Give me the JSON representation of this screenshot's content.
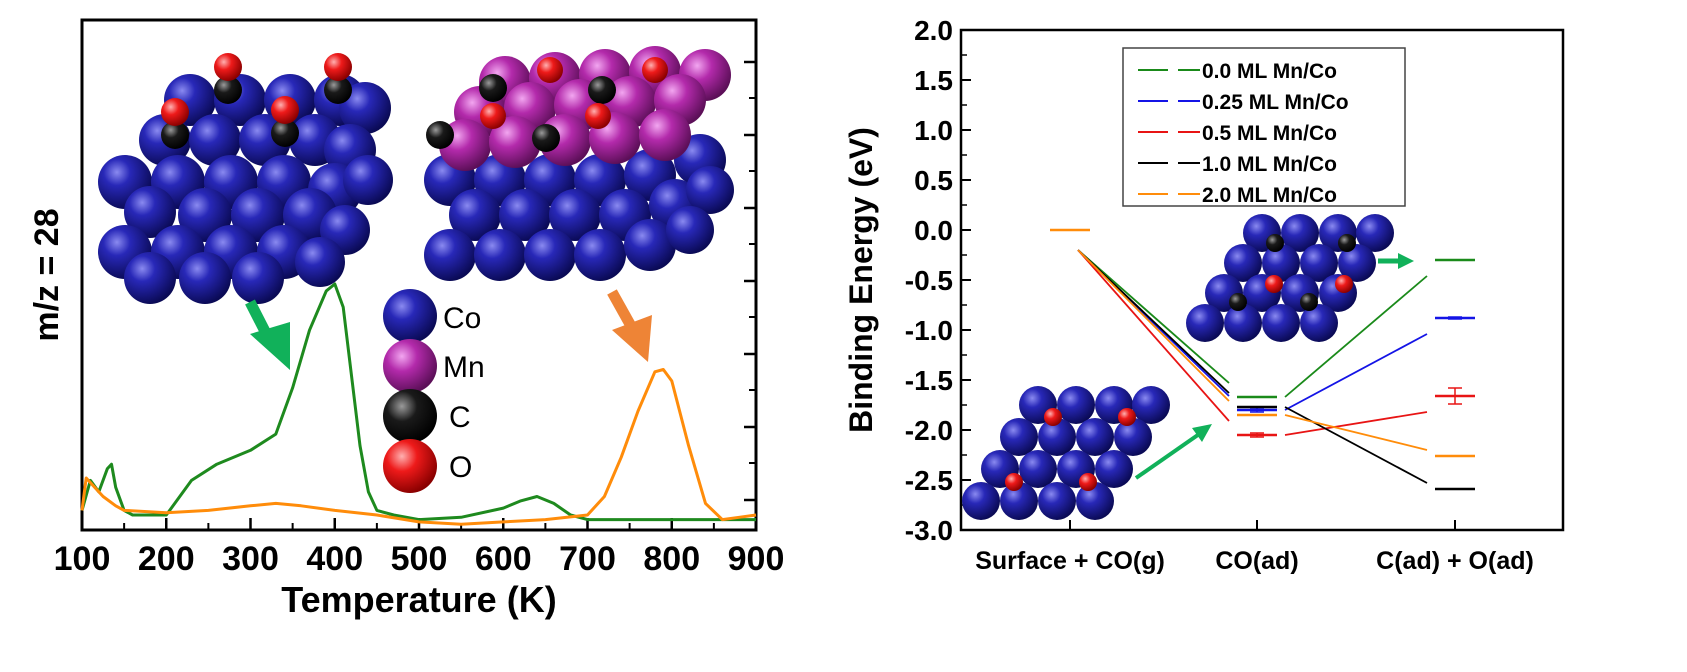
{
  "chart_data": [
    {
      "type": "line",
      "xlabel": "Temperature (K)",
      "ylabel": "m/z = 28",
      "xlim": [
        100,
        900
      ],
      "xticks": [
        "100",
        "200",
        "300",
        "400",
        "500",
        "600",
        "700",
        "800",
        "900"
      ],
      "grid": false,
      "legend": {
        "placement": "center",
        "entries": [
          {
            "label": "Co",
            "color": "#1f1f8f"
          },
          {
            "label": "Mn",
            "color": "#a0209a"
          },
          {
            "label": "C",
            "color": "#000000"
          },
          {
            "label": "O",
            "color": "#e8151b"
          }
        ]
      },
      "series": [
        {
          "color": "#1e8a1e",
          "x": [
            100,
            110,
            120,
            130,
            135,
            140,
            150,
            160,
            200,
            230,
            260,
            300,
            330,
            350,
            370,
            390,
            400,
            410,
            420,
            430,
            440,
            450,
            470,
            500,
            550,
            600,
            620,
            640,
            660,
            680,
            700,
            750,
            800,
            850,
            900
          ],
          "y": [
            0.02,
            0.15,
            0.1,
            0.2,
            0.22,
            0.12,
            0.02,
            0.0,
            0.0,
            0.15,
            0.22,
            0.28,
            0.35,
            0.55,
            0.8,
            0.97,
            1.0,
            0.9,
            0.6,
            0.3,
            0.1,
            0.02,
            0.0,
            -0.02,
            -0.01,
            0.03,
            0.06,
            0.08,
            0.05,
            0.0,
            -0.02,
            -0.02,
            -0.02,
            -0.02,
            -0.02
          ]
        },
        {
          "color": "#ff8c0a",
          "x": [
            100,
            105,
            115,
            125,
            140,
            150,
            200,
            250,
            300,
            330,
            360,
            400,
            450,
            500,
            550,
            600,
            650,
            700,
            720,
            740,
            760,
            780,
            790,
            800,
            820,
            840,
            860,
            880,
            900
          ],
          "y": [
            0.02,
            0.16,
            0.12,
            0.08,
            0.04,
            0.02,
            0.01,
            0.02,
            0.04,
            0.05,
            0.04,
            0.02,
            0.0,
            -0.03,
            -0.04,
            -0.03,
            -0.02,
            0.0,
            0.08,
            0.25,
            0.45,
            0.62,
            0.63,
            0.58,
            0.3,
            0.05,
            -0.02,
            -0.01,
            0.0
          ]
        }
      ]
    },
    {
      "type": "line",
      "ylabel": "Binding Energy (eV)",
      "ylim": [
        -3.0,
        2.0
      ],
      "yticks": [
        "2.0",
        "1.5",
        "1.0",
        "0.5",
        "0.0",
        "-0.5",
        "-1.0",
        "-1.5",
        "-2.0",
        "-2.5",
        "-3.0"
      ],
      "categories": [
        "Surface + CO(g)",
        "CO(ad)",
        "C(ad) + O(ad)"
      ],
      "grid": false,
      "legend": {
        "placement": "top-center"
      },
      "series": [
        {
          "name": "0.0 ML Mn/Co",
          "color": "#1a8a1a",
          "values": [
            0.0,
            -1.67,
            -0.3
          ],
          "err": [
            0,
            0,
            0
          ]
        },
        {
          "name": "0.25 ML Mn/Co",
          "color": "#1414e6",
          "values": [
            0.0,
            -1.8,
            -0.88
          ],
          "err": [
            0,
            0.02,
            0.01
          ]
        },
        {
          "name": "0.5 ML Mn/Co",
          "color": "#e81414",
          "values": [
            0.0,
            -2.05,
            -1.66
          ],
          "err": [
            0,
            0.02,
            0.08
          ]
        },
        {
          "name": "1.0 ML Mn/Co",
          "color": "#000000",
          "values": [
            0.0,
            -1.77,
            -2.59
          ],
          "err": [
            0,
            0,
            0
          ]
        },
        {
          "name": "2.0 ML Mn/Co",
          "color": "#ff8c0a",
          "values": [
            0.0,
            -1.85,
            -2.26
          ],
          "err": [
            0,
            0,
            0
          ]
        }
      ]
    }
  ]
}
